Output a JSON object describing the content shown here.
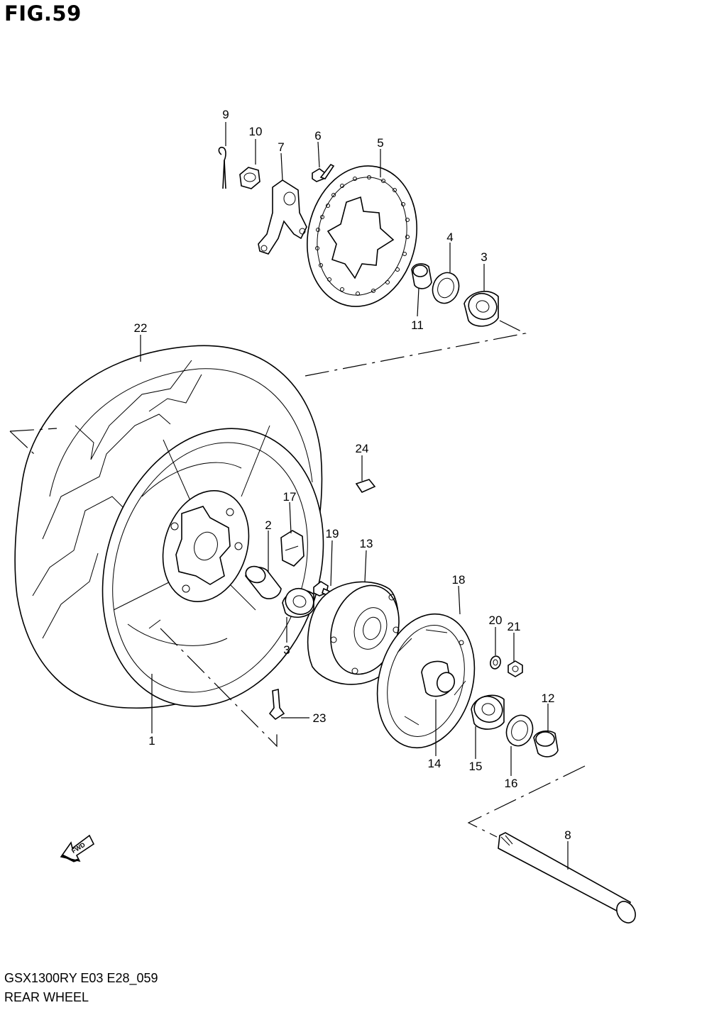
{
  "figure": {
    "title": "FIG.59",
    "model_code": "GSX1300RY E03 E28_059",
    "assembly_name": "REAR WHEEL"
  },
  "callouts": [
    {
      "id": "c1",
      "label": "1"
    },
    {
      "id": "c2",
      "label": "2"
    },
    {
      "id": "c3a",
      "label": "3"
    },
    {
      "id": "c3b",
      "label": "3"
    },
    {
      "id": "c4",
      "label": "4"
    },
    {
      "id": "c5",
      "label": "5"
    },
    {
      "id": "c6",
      "label": "6"
    },
    {
      "id": "c7",
      "label": "7"
    },
    {
      "id": "c8",
      "label": "8"
    },
    {
      "id": "c9",
      "label": "9"
    },
    {
      "id": "c10",
      "label": "10"
    },
    {
      "id": "c11",
      "label": "11"
    },
    {
      "id": "c12",
      "label": "12"
    },
    {
      "id": "c13",
      "label": "13"
    },
    {
      "id": "c14",
      "label": "14"
    },
    {
      "id": "c15",
      "label": "15"
    },
    {
      "id": "c16",
      "label": "16"
    },
    {
      "id": "c17",
      "label": "17"
    },
    {
      "id": "c18",
      "label": "18"
    },
    {
      "id": "c19",
      "label": "19"
    },
    {
      "id": "c20",
      "label": "20"
    },
    {
      "id": "c21",
      "label": "21"
    },
    {
      "id": "c22",
      "label": "22"
    },
    {
      "id": "c23",
      "label": "23"
    },
    {
      "id": "c24",
      "label": "24"
    }
  ],
  "direction_marker": {
    "text": "FWD",
    "icon": "arrow-forward-icon"
  }
}
